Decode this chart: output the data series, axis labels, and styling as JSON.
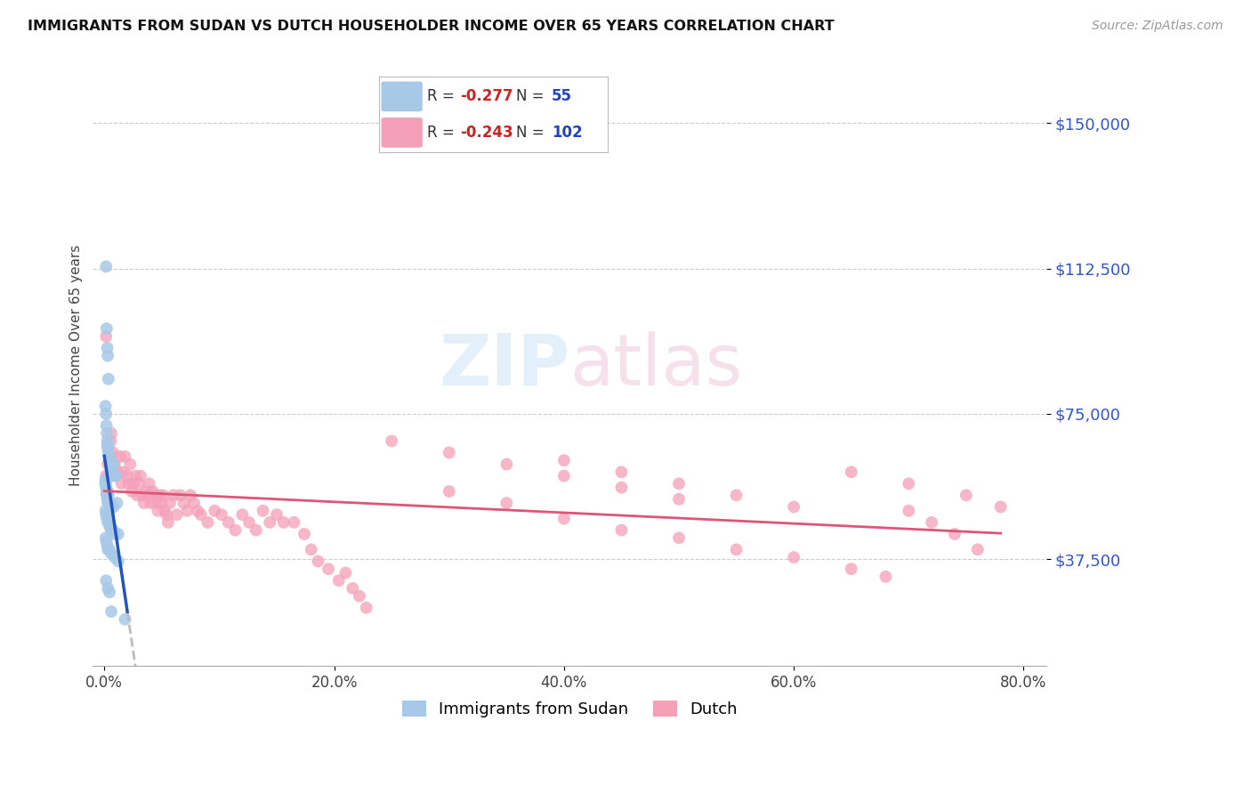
{
  "title": "IMMIGRANTS FROM SUDAN VS DUTCH HOUSEHOLDER INCOME OVER 65 YEARS CORRELATION CHART",
  "source": "Source: ZipAtlas.com",
  "ylabel": "Householder Income Over 65 years",
  "xlabel_ticks": [
    "0.0%",
    "20.0%",
    "40.0%",
    "60.0%",
    "80.0%"
  ],
  "xlabel_vals": [
    0.0,
    20.0,
    40.0,
    60.0,
    80.0
  ],
  "xlim": [
    -1.0,
    82.0
  ],
  "ylim": [
    10000,
    165000
  ],
  "yticks": [
    37500,
    75000,
    112500,
    150000
  ],
  "ytick_labels": [
    "$37,500",
    "$75,000",
    "$112,500",
    "$150,000"
  ],
  "sudan_color": "#a8c8e8",
  "dutch_color": "#f4a0b8",
  "sudan_R": -0.277,
  "sudan_N": 55,
  "dutch_R": -0.243,
  "dutch_N": 102,
  "legend_label_sudan": "Immigrants from Sudan",
  "legend_label_dutch": "Dutch",
  "background_color": "#ffffff",
  "grid_color": "#cccccc",
  "sudan_line_color": "#2255bb",
  "dutch_line_color": "#dd5577",
  "sudan_scatter_x": [
    0.15,
    0.2,
    0.25,
    0.3,
    0.35,
    0.1,
    0.15,
    0.18,
    0.22,
    0.25,
    0.28,
    0.3,
    0.35,
    0.4,
    0.5,
    0.55,
    0.6,
    0.7,
    0.8,
    1.0,
    0.08,
    0.1,
    0.12,
    0.15,
    0.18,
    0.2,
    0.25,
    0.3,
    0.35,
    0.45,
    0.6,
    0.8,
    1.1,
    0.1,
    0.15,
    0.22,
    0.3,
    0.45,
    0.6,
    0.75,
    0.9,
    1.2,
    0.12,
    0.18,
    0.25,
    0.3,
    0.45,
    0.6,
    0.9,
    1.2,
    0.15,
    0.3,
    0.45,
    0.6,
    1.8
  ],
  "sudan_scatter_y": [
    113000,
    97000,
    92000,
    90000,
    84000,
    77000,
    75000,
    72000,
    70000,
    68000,
    67000,
    66000,
    65000,
    64000,
    62000,
    60000,
    60000,
    59000,
    62000,
    59000,
    57000,
    58000,
    57000,
    56000,
    55000,
    54000,
    53000,
    52000,
    54000,
    52000,
    51000,
    51000,
    52000,
    50000,
    49000,
    48000,
    47000,
    46000,
    45000,
    45000,
    44000,
    44000,
    43000,
    42000,
    41000,
    40000,
    40000,
    39000,
    38000,
    37000,
    32000,
    30000,
    29000,
    24000,
    22000
  ],
  "dutch_scatter_x": [
    0.15,
    0.25,
    0.3,
    0.35,
    0.45,
    0.55,
    0.6,
    0.75,
    0.9,
    1.05,
    1.2,
    1.35,
    1.5,
    1.65,
    1.8,
    2.0,
    2.1,
    2.25,
    2.4,
    2.55,
    2.7,
    2.85,
    3.0,
    3.15,
    3.3,
    3.45,
    3.6,
    3.75,
    3.9,
    4.05,
    4.2,
    4.35,
    4.5,
    4.65,
    4.8,
    4.95,
    5.1,
    5.25,
    5.4,
    5.55,
    5.7,
    6.0,
    6.3,
    6.6,
    6.9,
    7.2,
    7.5,
    7.8,
    8.1,
    8.4,
    9.0,
    9.6,
    10.2,
    10.8,
    11.4,
    12.0,
    12.6,
    13.2,
    13.8,
    14.4,
    15.0,
    15.6,
    16.5,
    17.4,
    18.0,
    18.6,
    19.5,
    20.4,
    21.0,
    21.6,
    22.2,
    22.8,
    30.0,
    35.0,
    40.0,
    45.0,
    50.0,
    55.0,
    60.0,
    65.0,
    68.0,
    70.0,
    72.0,
    74.0,
    76.0,
    40.0,
    45.0,
    50.0,
    55.0,
    60.0,
    65.0,
    70.0,
    75.0,
    78.0,
    25.0,
    30.0,
    35.0,
    40.0,
    45.0,
    50.0,
    0.15,
    0.3
  ],
  "dutch_scatter_y": [
    95000,
    67000,
    62000,
    66000,
    64000,
    68000,
    70000,
    65000,
    62000,
    59000,
    60000,
    64000,
    57000,
    60000,
    64000,
    59000,
    57000,
    62000,
    55000,
    57000,
    59000,
    54000,
    57000,
    59000,
    54000,
    52000,
    55000,
    54000,
    57000,
    52000,
    55000,
    54000,
    52000,
    50000,
    54000,
    52000,
    54000,
    50000,
    49000,
    47000,
    52000,
    54000,
    49000,
    54000,
    52000,
    50000,
    54000,
    52000,
    50000,
    49000,
    47000,
    50000,
    49000,
    47000,
    45000,
    49000,
    47000,
    45000,
    50000,
    47000,
    49000,
    47000,
    47000,
    44000,
    40000,
    37000,
    35000,
    32000,
    34000,
    30000,
    28000,
    25000,
    55000,
    52000,
    48000,
    45000,
    43000,
    40000,
    38000,
    35000,
    33000,
    50000,
    47000,
    44000,
    40000,
    63000,
    60000,
    57000,
    54000,
    51000,
    60000,
    57000,
    54000,
    51000,
    68000,
    65000,
    62000,
    59000,
    56000,
    53000,
    59000,
    55000
  ]
}
